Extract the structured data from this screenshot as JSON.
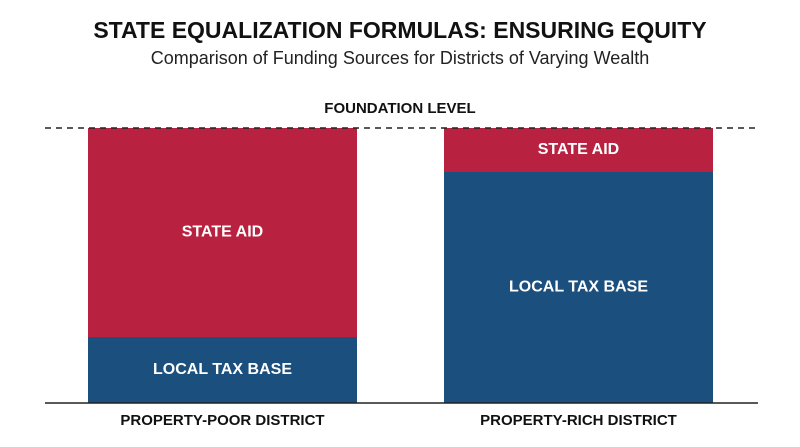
{
  "chart_data": {
    "type": "bar",
    "stacked": true,
    "title": "STATE EQUALIZATION FORMULAS: ENSURING EQUITY",
    "subtitle": "Comparison of Funding Sources for Districts of Varying Wealth",
    "reference_line": {
      "label": "FOUNDATION LEVEL",
      "value": 100
    },
    "categories": [
      "PROPERTY-POOR DISTRICT",
      "PROPERTY-RICH DISTRICT"
    ],
    "series": [
      {
        "name": "LOCAL TAX BASE",
        "color": "#1b4f7d",
        "values": [
          24,
          84
        ]
      },
      {
        "name": "STATE AID",
        "color": "#b8213f",
        "values": [
          76,
          16
        ]
      }
    ],
    "ylim": [
      0,
      100
    ]
  }
}
